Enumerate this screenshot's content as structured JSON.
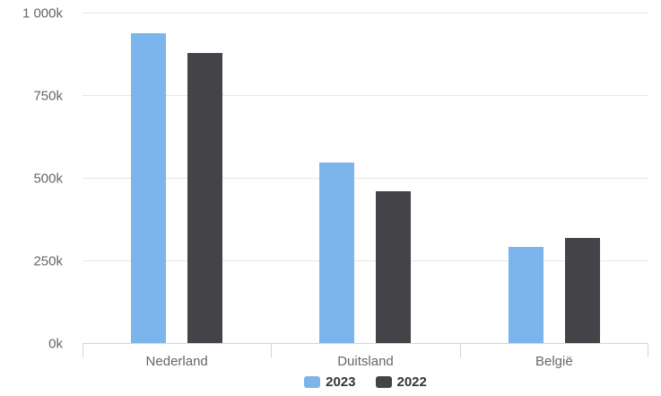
{
  "chart_data": {
    "type": "bar",
    "title": "",
    "xlabel": "",
    "ylabel": "",
    "categories": [
      "Nederland",
      "Duitsland",
      "België"
    ],
    "series": [
      {
        "name": "2023",
        "color": "#7cb5ec",
        "values": [
          940000,
          548000,
          294000
        ]
      },
      {
        "name": "2022",
        "color": "#434348",
        "values": [
          880000,
          461000,
          322000
        ]
      }
    ],
    "ylim": [
      0,
      1000000
    ],
    "yticks": [
      {
        "value": 0,
        "label": "0k"
      },
      {
        "value": 250000,
        "label": "250k"
      },
      {
        "value": 500000,
        "label": "500k"
      },
      {
        "value": 750000,
        "label": "750k"
      },
      {
        "value": 1000000,
        "label": "1 000k"
      }
    ],
    "grid": true,
    "legend_position": "bottom-center"
  },
  "colors": {
    "series_2023": "#7cb5ec",
    "series_2022": "#434348",
    "gridline": "#e6e6e6",
    "axis_line": "#ccd6eb",
    "axis_label_text": "#666666",
    "legend_text": "#333333",
    "background": "#ffffff"
  }
}
